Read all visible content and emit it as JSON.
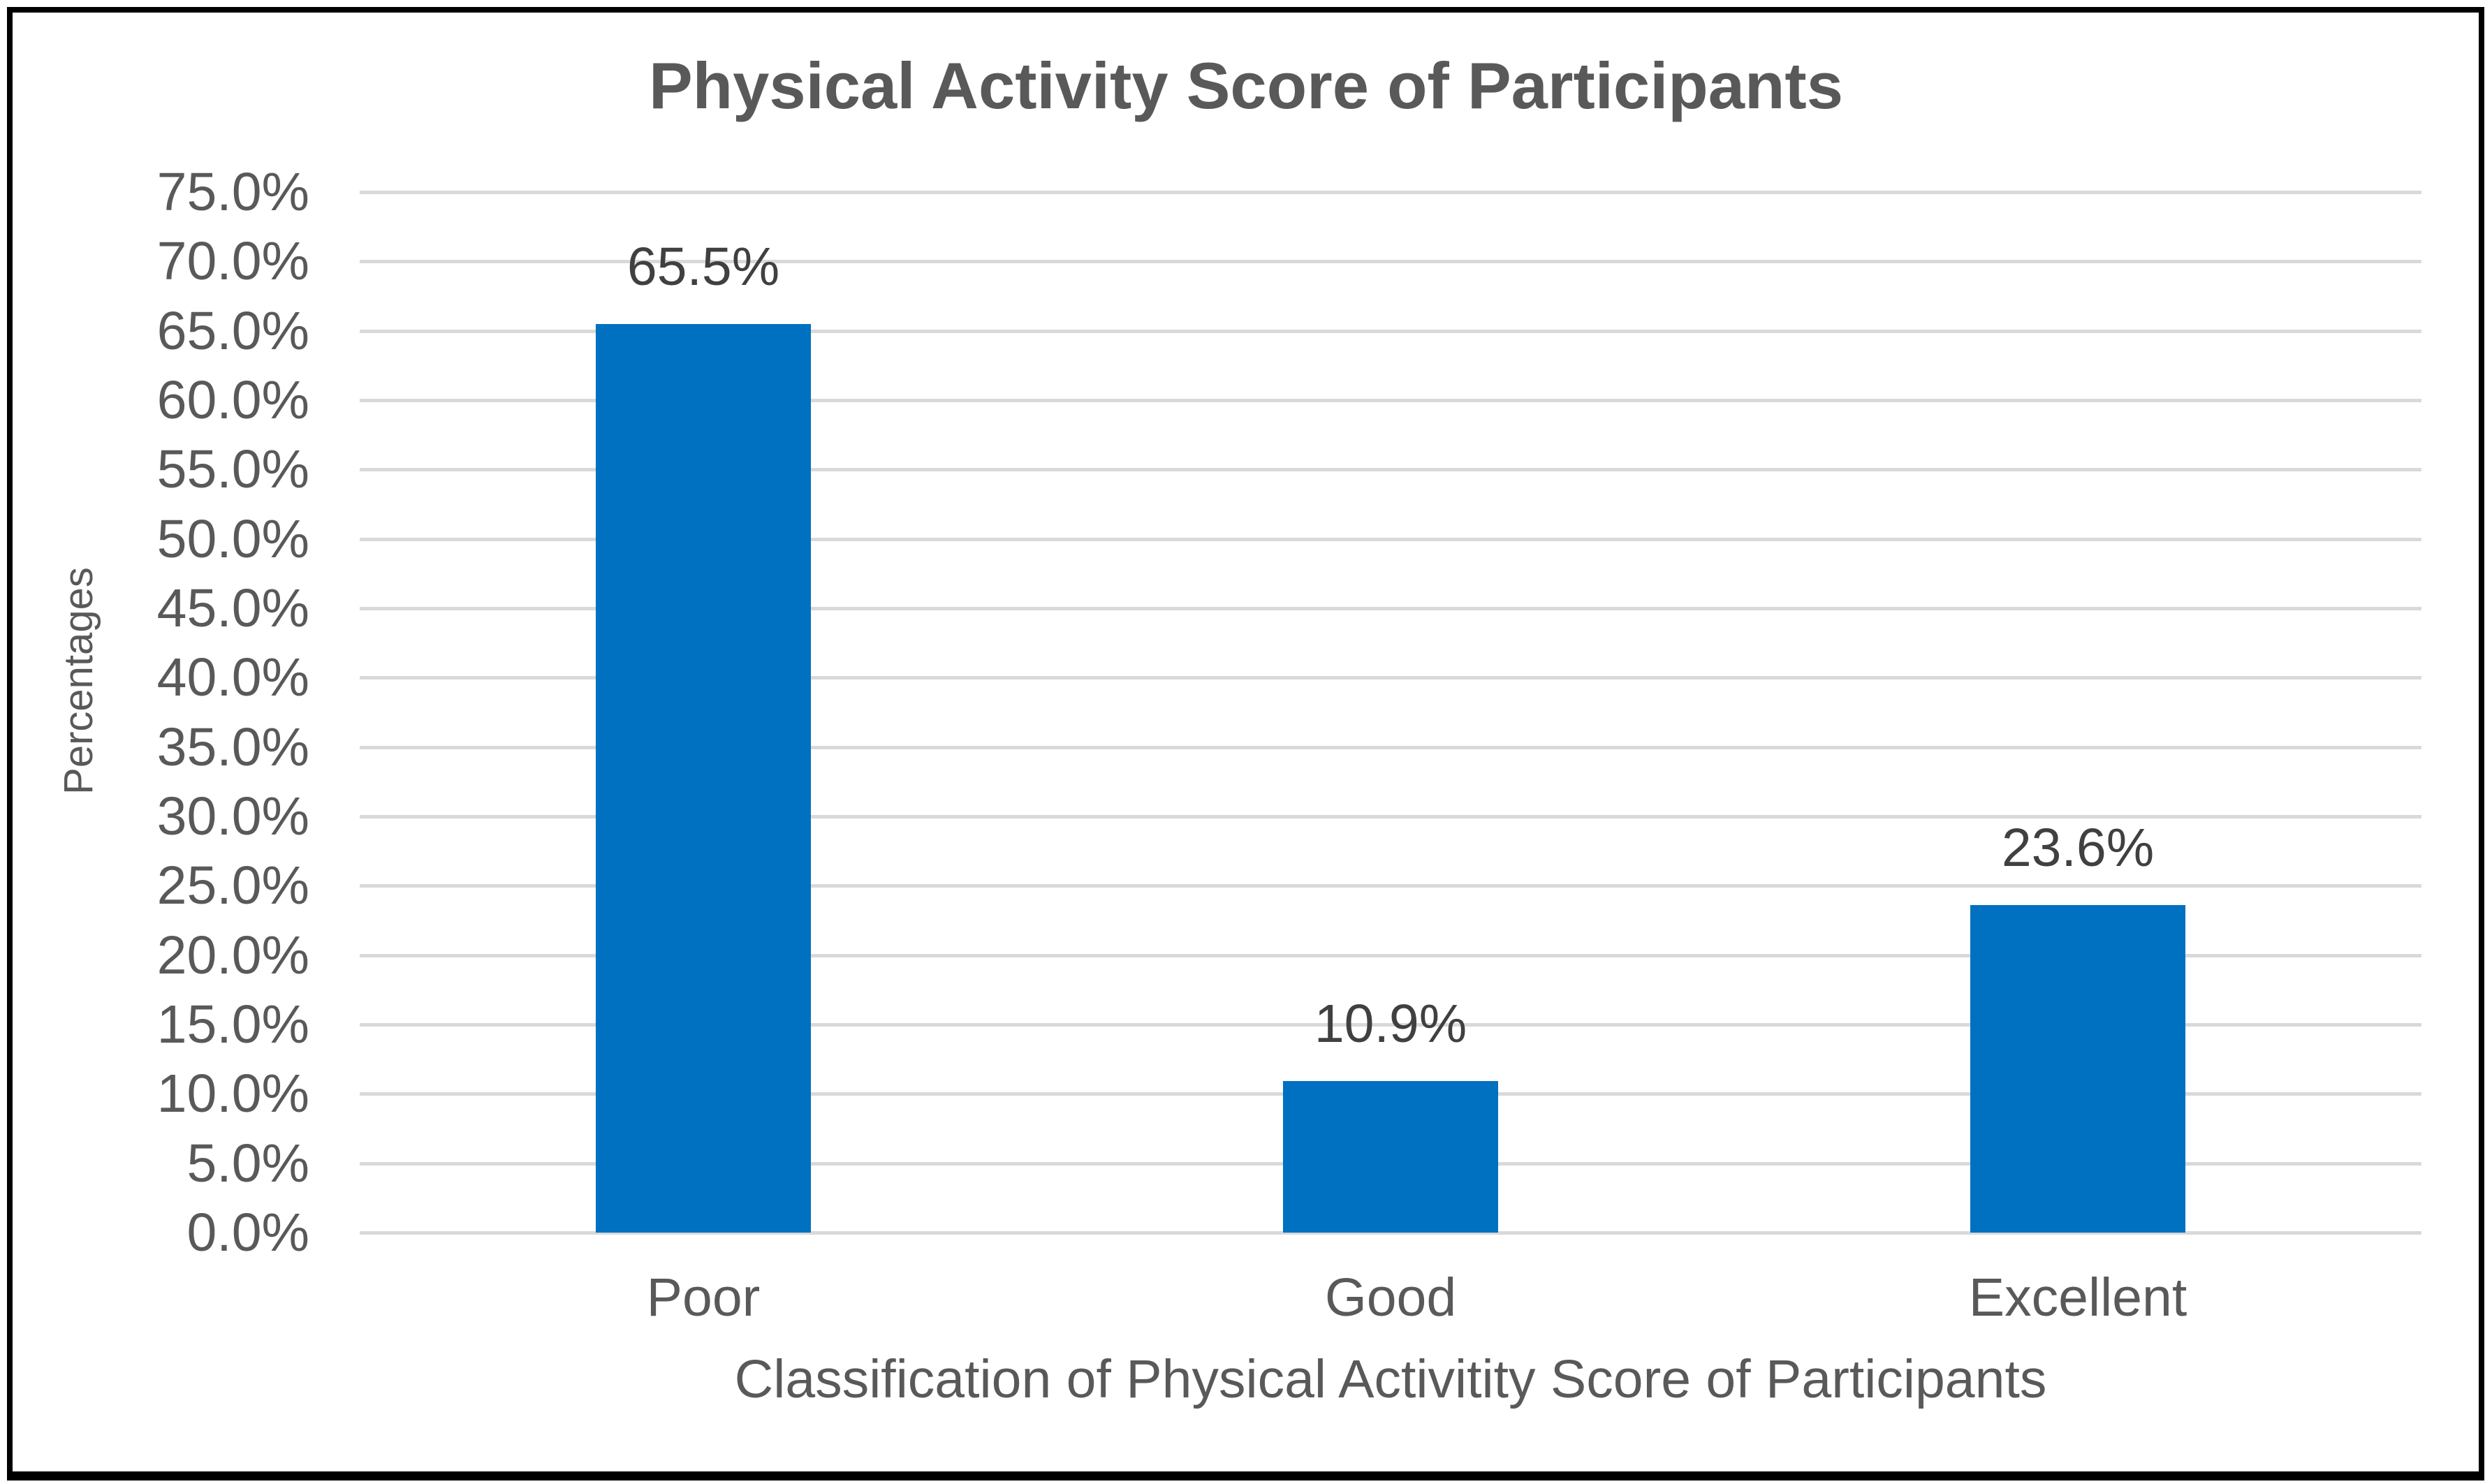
{
  "window": {
    "background": "#FFFFFF",
    "border_color": "#000000"
  },
  "chart_data": {
    "type": "bar",
    "title": "Physical Activity Score of Participants",
    "xlabel": "Classification of Physical Activitity Score of Participants",
    "ylabel": "Percentages",
    "categories": [
      "Poor",
      "Good",
      "Excellent"
    ],
    "values": [
      65.5,
      10.9,
      23.6
    ],
    "data_labels": [
      "65.5%",
      "10.9%",
      "23.6%"
    ],
    "ylim": [
      0,
      75
    ],
    "ytick_step": 5,
    "ytick_labels": [
      "0.0%",
      "5.0%",
      "10.0%",
      "15.0%",
      "20.0%",
      "25.0%",
      "30.0%",
      "35.0%",
      "40.0%",
      "45.0%",
      "50.0%",
      "55.0%",
      "60.0%",
      "65.0%",
      "70.0%",
      "75.0%"
    ],
    "grid": true,
    "legend_position": "none",
    "colors": {
      "bar": "#0070C0",
      "gridline": "#D9D9D9",
      "axis_text": "#595959",
      "title_text": "#595959",
      "data_label_text": "#404040"
    }
  }
}
